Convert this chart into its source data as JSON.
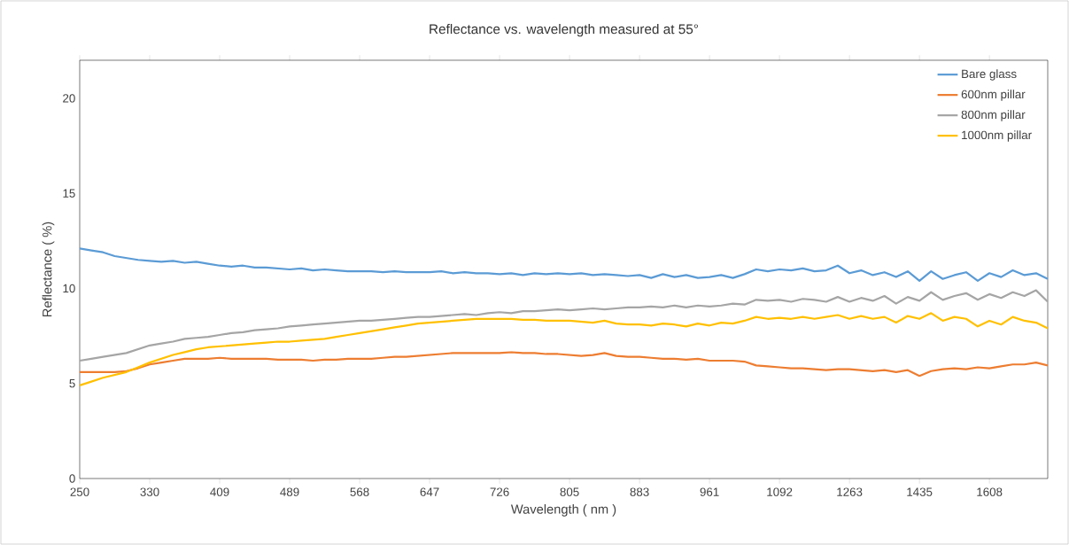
{
  "chart_data": {
    "type": "line",
    "title": "Reflectance vs. wavelength measured at 55°",
    "xlabel": "Wavelength ( nm )",
    "ylabel": "Reflectance ( %)",
    "categories": [
      "250",
      null,
      null,
      null,
      null,
      null,
      "330",
      null,
      null,
      null,
      null,
      null,
      "409",
      null,
      null,
      null,
      null,
      null,
      "489",
      null,
      null,
      null,
      null,
      null,
      "568",
      null,
      null,
      null,
      null,
      null,
      "647",
      null,
      null,
      null,
      null,
      null,
      "726",
      null,
      null,
      null,
      null,
      null,
      "805",
      null,
      null,
      null,
      null,
      null,
      "883",
      null,
      null,
      null,
      null,
      null,
      "961",
      null,
      null,
      null,
      null,
      null,
      "1092",
      null,
      null,
      null,
      null,
      null,
      "1263",
      null,
      null,
      null,
      null,
      null,
      "1435",
      null,
      null,
      null,
      null,
      null,
      "1608",
      null,
      null,
      null,
      null,
      null
    ],
    "series": [
      {
        "name": "Bare glass",
        "color": "#5b9bd5",
        "values": [
          12.1,
          12.0,
          11.9,
          11.7,
          11.6,
          11.5,
          11.45,
          11.4,
          11.45,
          11.35,
          11.4,
          11.3,
          11.2,
          11.15,
          11.2,
          11.1,
          11.1,
          11.05,
          11.0,
          11.05,
          10.95,
          11.0,
          10.95,
          10.9,
          10.9,
          10.9,
          10.85,
          10.9,
          10.85,
          10.85,
          10.85,
          10.9,
          10.8,
          10.85,
          10.8,
          10.8,
          10.75,
          10.8,
          10.7,
          10.8,
          10.75,
          10.8,
          10.75,
          10.8,
          10.7,
          10.75,
          10.7,
          10.65,
          10.7,
          10.55,
          10.75,
          10.6,
          10.7,
          10.55,
          10.6,
          10.7,
          10.55,
          10.75,
          11.0,
          10.9,
          11.0,
          10.95,
          11.05,
          10.9,
          10.95,
          11.2,
          10.8,
          10.95,
          10.7,
          10.85,
          10.6,
          10.9,
          10.4,
          10.9,
          10.5,
          10.7,
          10.85,
          10.4,
          10.8,
          10.6,
          10.95,
          10.7,
          10.8,
          10.5
        ]
      },
      {
        "name": "600nm pillar",
        "color": "#ed7d31",
        "values": [
          5.6,
          5.6,
          5.6,
          5.6,
          5.65,
          5.8,
          6.0,
          6.1,
          6.2,
          6.3,
          6.3,
          6.3,
          6.35,
          6.3,
          6.3,
          6.3,
          6.3,
          6.25,
          6.25,
          6.25,
          6.2,
          6.25,
          6.25,
          6.3,
          6.3,
          6.3,
          6.35,
          6.4,
          6.4,
          6.45,
          6.5,
          6.55,
          6.6,
          6.6,
          6.6,
          6.6,
          6.6,
          6.65,
          6.6,
          6.6,
          6.55,
          6.55,
          6.5,
          6.45,
          6.5,
          6.6,
          6.45,
          6.4,
          6.4,
          6.35,
          6.3,
          6.3,
          6.25,
          6.3,
          6.2,
          6.2,
          6.2,
          6.15,
          5.95,
          5.9,
          5.85,
          5.8,
          5.8,
          5.75,
          5.7,
          5.75,
          5.75,
          5.7,
          5.65,
          5.7,
          5.6,
          5.7,
          5.4,
          5.65,
          5.75,
          5.8,
          5.75,
          5.85,
          5.8,
          5.9,
          6.0,
          6.0,
          6.1,
          5.95
        ]
      },
      {
        "name": "800nm pillar",
        "color": "#a5a5a5",
        "values": [
          6.2,
          6.3,
          6.4,
          6.5,
          6.6,
          6.8,
          7.0,
          7.1,
          7.2,
          7.35,
          7.4,
          7.45,
          7.55,
          7.65,
          7.7,
          7.8,
          7.85,
          7.9,
          8.0,
          8.05,
          8.1,
          8.15,
          8.2,
          8.25,
          8.3,
          8.3,
          8.35,
          8.4,
          8.45,
          8.5,
          8.5,
          8.55,
          8.6,
          8.65,
          8.6,
          8.7,
          8.75,
          8.7,
          8.8,
          8.8,
          8.85,
          8.9,
          8.85,
          8.9,
          8.95,
          8.9,
          8.95,
          9.0,
          9.0,
          9.05,
          9.0,
          9.1,
          9.0,
          9.1,
          9.05,
          9.1,
          9.2,
          9.15,
          9.4,
          9.35,
          9.4,
          9.3,
          9.45,
          9.4,
          9.3,
          9.55,
          9.3,
          9.5,
          9.35,
          9.6,
          9.2,
          9.55,
          9.35,
          9.8,
          9.4,
          9.6,
          9.75,
          9.4,
          9.7,
          9.5,
          9.8,
          9.6,
          9.9,
          9.3
        ]
      },
      {
        "name": "1000nm pillar",
        "color": "#ffc000",
        "values": [
          4.9,
          5.1,
          5.3,
          5.45,
          5.6,
          5.85,
          6.1,
          6.3,
          6.5,
          6.65,
          6.8,
          6.9,
          6.95,
          7.0,
          7.05,
          7.1,
          7.15,
          7.2,
          7.2,
          7.25,
          7.3,
          7.35,
          7.45,
          7.55,
          7.65,
          7.75,
          7.85,
          7.95,
          8.05,
          8.15,
          8.2,
          8.25,
          8.3,
          8.35,
          8.4,
          8.4,
          8.4,
          8.4,
          8.35,
          8.35,
          8.3,
          8.3,
          8.3,
          8.25,
          8.2,
          8.3,
          8.15,
          8.1,
          8.1,
          8.05,
          8.15,
          8.1,
          8.0,
          8.15,
          8.05,
          8.2,
          8.15,
          8.3,
          8.5,
          8.4,
          8.45,
          8.4,
          8.5,
          8.4,
          8.5,
          8.6,
          8.4,
          8.55,
          8.4,
          8.5,
          8.2,
          8.55,
          8.4,
          8.7,
          8.3,
          8.5,
          8.4,
          8.0,
          8.3,
          8.1,
          8.5,
          8.3,
          8.2,
          7.9
        ]
      }
    ],
    "ylim": [
      0,
      22
    ],
    "yticks": [
      0,
      5,
      10,
      15,
      20
    ],
    "grid": false,
    "legend": "top right",
    "marker": "none",
    "line_style": "solid"
  }
}
